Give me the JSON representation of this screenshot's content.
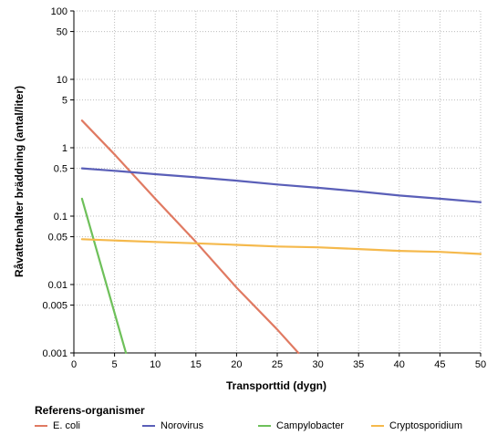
{
  "chart_data": {
    "type": "line",
    "xlabel": "Transporttid (dygn)",
    "ylabel": "Råvattenhalter bräddning (antal/liter)",
    "x_scale": "linear",
    "y_scale": "log",
    "xlim": [
      0,
      50
    ],
    "ylim": [
      0.001,
      100
    ],
    "x_ticks": [
      "0",
      "5",
      "10",
      "15",
      "20",
      "25",
      "30",
      "35",
      "40",
      "45",
      "50"
    ],
    "y_ticks": [
      {
        "value": 100,
        "label": "100"
      },
      {
        "value": 50,
        "label": "50"
      },
      {
        "value": 10,
        "label": "10"
      },
      {
        "value": 5,
        "label": "5"
      },
      {
        "value": 1,
        "label": "1"
      },
      {
        "value": 0.5,
        "label": "0.5"
      },
      {
        "value": 0.1,
        "label": "0.1"
      },
      {
        "value": 0.05,
        "label": "0.05"
      },
      {
        "value": 0.01,
        "label": "0.01"
      },
      {
        "value": 0.005,
        "label": "0.005"
      },
      {
        "value": 0.001,
        "label": "0.001"
      }
    ],
    "grid": true,
    "legend_title": "Referens-organismer",
    "legend_position": "bottom",
    "series": [
      {
        "name": "E. coli",
        "color": "#e07a62",
        "x": [
          1,
          5,
          10,
          15,
          20,
          25,
          27.6
        ],
        "y": [
          2.5,
          0.8,
          0.18,
          0.042,
          0.009,
          0.0022,
          0.001
        ]
      },
      {
        "name": "Norovirus",
        "color": "#5a5fb8",
        "x": [
          1,
          5,
          10,
          15,
          20,
          25,
          30,
          35,
          40,
          45,
          50
        ],
        "y": [
          0.5,
          0.46,
          0.41,
          0.37,
          0.33,
          0.29,
          0.26,
          0.23,
          0.2,
          0.18,
          0.16
        ]
      },
      {
        "name": "Campylobacter",
        "color": "#6ec05a",
        "x": [
          1,
          6.4
        ],
        "y": [
          0.18,
          0.001
        ]
      },
      {
        "name": "Cryptosporidium",
        "color": "#f5b94c",
        "x": [
          1,
          5,
          10,
          15,
          20,
          25,
          30,
          35,
          40,
          45,
          50
        ],
        "y": [
          0.046,
          0.044,
          0.042,
          0.04,
          0.038,
          0.036,
          0.035,
          0.033,
          0.031,
          0.03,
          0.028
        ]
      }
    ]
  }
}
